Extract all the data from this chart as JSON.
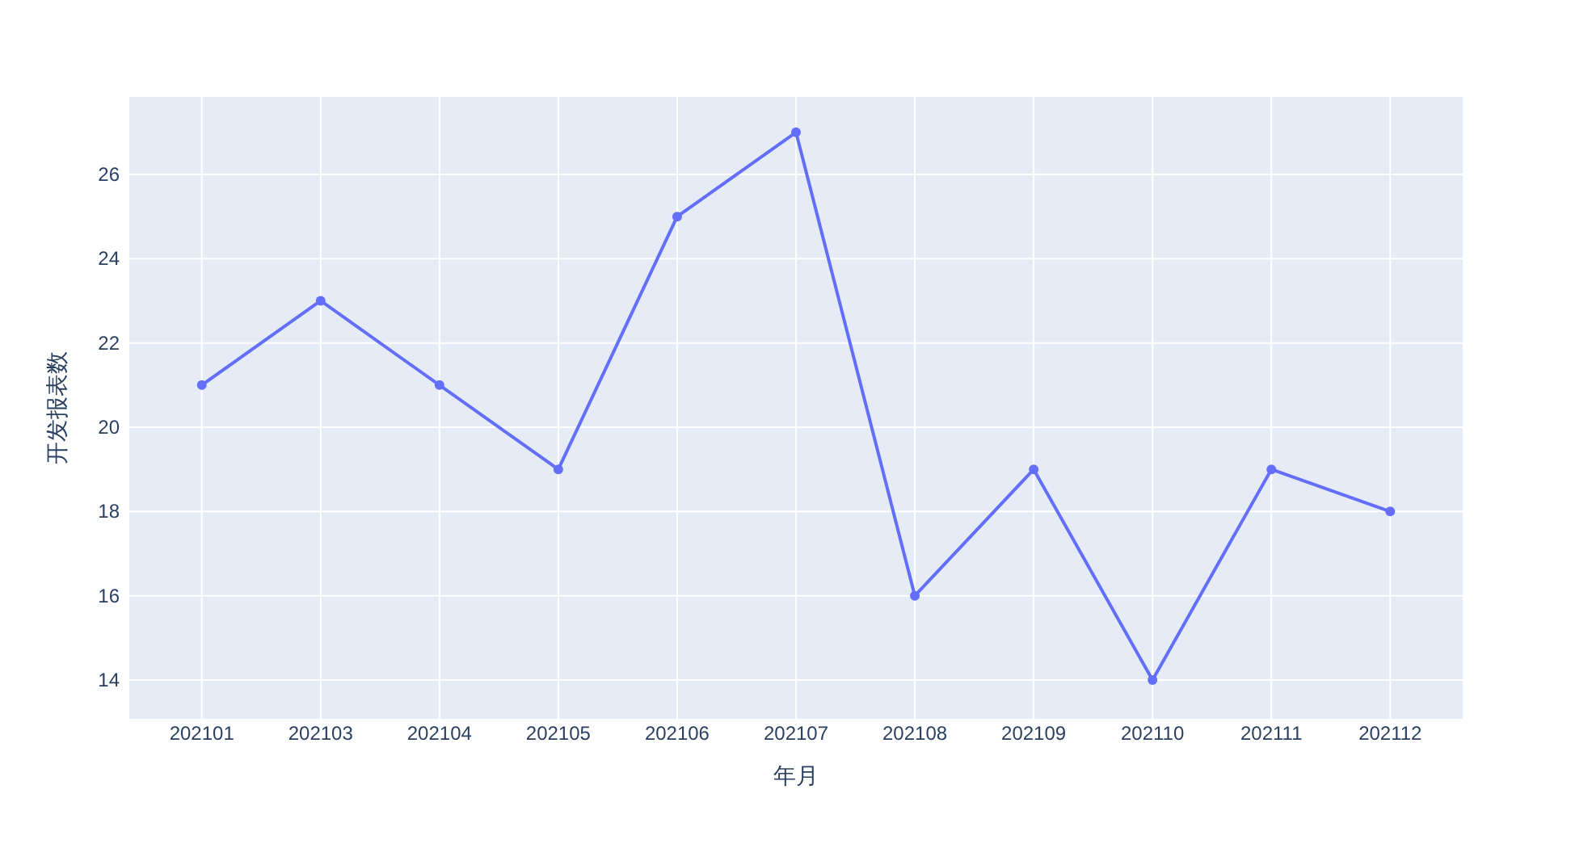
{
  "chart_data": {
    "type": "line",
    "xlabel": "年月",
    "ylabel": "开发报表数",
    "categories": [
      "202101",
      "202103",
      "202104",
      "202105",
      "202106",
      "202107",
      "202108",
      "202109",
      "202110",
      "202111",
      "202112"
    ],
    "values": [
      21,
      23,
      21,
      19,
      25,
      27,
      16,
      19,
      14,
      19,
      18
    ],
    "color": "#636efa",
    "ylim": [
      13.08,
      27.84
    ],
    "yticks": [
      14,
      16,
      18,
      20,
      22,
      24,
      26
    ],
    "grid": true,
    "marker": "circle"
  }
}
